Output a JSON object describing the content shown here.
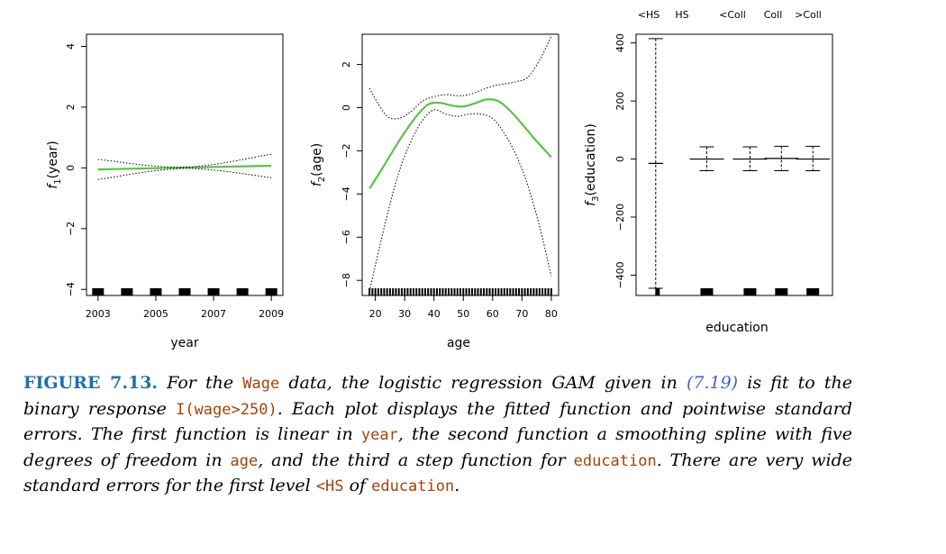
{
  "chart_data": [
    {
      "type": "line",
      "xlabel": "year",
      "ylabel_main": "f",
      "ylabel_sub": "1",
      "ylabel_rest": "(year)",
      "xlim": [
        2002.6,
        2009.4
      ],
      "ylim": [
        -4.2,
        4.4
      ],
      "xticks": [
        2003,
        2005,
        2007,
        2009
      ],
      "yticks": [
        -4,
        -2,
        0,
        2,
        4
      ],
      "series": [
        {
          "x": [
            2003,
            2009
          ],
          "y": [
            -0.05,
            0.07
          ],
          "style": "fit",
          "color": "#5cc24a"
        },
        {
          "x": [
            2003,
            2006,
            2009
          ],
          "y": [
            0.28,
            0.02,
            0.45
          ],
          "style": "se-upper"
        },
        {
          "x": [
            2003,
            2006,
            2009
          ],
          "y": [
            -0.38,
            -0.02,
            -0.32
          ],
          "style": "se-lower"
        }
      ],
      "rug": [
        2003,
        2004,
        2005,
        2006,
        2007,
        2008,
        2009
      ]
    },
    {
      "type": "line",
      "xlabel": "age",
      "ylabel_main": "f",
      "ylabel_sub": "2",
      "ylabel_rest": "(age)",
      "xlim": [
        15.5,
        82.5
      ],
      "ylim": [
        -8.7,
        3.4
      ],
      "xticks": [
        20,
        30,
        40,
        50,
        60,
        70,
        80
      ],
      "yticks": [
        -8,
        -6,
        -4,
        -2,
        0,
        2
      ],
      "series": [
        {
          "x": [
            18,
            22,
            26,
            30,
            34,
            38,
            42,
            46,
            50,
            54,
            58,
            62,
            66,
            70,
            74,
            78,
            80
          ],
          "y": [
            -3.75,
            -2.9,
            -2.0,
            -1.15,
            -0.4,
            0.15,
            0.22,
            0.1,
            0.05,
            0.2,
            0.38,
            0.3,
            -0.15,
            -0.75,
            -1.4,
            -2.0,
            -2.3
          ],
          "style": "fit",
          "color": "#5cc24a"
        },
        {
          "x": [
            18,
            20,
            24,
            28,
            32,
            36,
            40,
            44,
            48,
            52,
            56,
            60,
            64,
            68,
            72,
            76,
            80
          ],
          "y": [
            0.9,
            0.4,
            -0.4,
            -0.5,
            -0.2,
            0.3,
            0.5,
            0.6,
            0.55,
            0.6,
            0.8,
            1.0,
            1.1,
            1.2,
            1.4,
            2.2,
            3.3
          ],
          "style": "se-upper"
        },
        {
          "x": [
            18,
            20,
            24,
            28,
            32,
            36,
            40,
            44,
            48,
            52,
            56,
            60,
            64,
            68,
            72,
            76,
            80
          ],
          "y": [
            -8.5,
            -7.3,
            -5.0,
            -3.0,
            -1.6,
            -0.6,
            -0.1,
            -0.3,
            -0.4,
            -0.3,
            -0.3,
            -0.5,
            -1.2,
            -2.2,
            -3.6,
            -5.5,
            -7.8
          ],
          "style": "se-lower"
        }
      ],
      "rug_range": [
        18,
        80
      ]
    },
    {
      "type": "step",
      "xlabel": "education",
      "ylabel_main": "f",
      "ylabel_sub": "3",
      "ylabel_rest": "(education)",
      "categories": [
        "<HS",
        "HS",
        "<Coll",
        "Coll",
        ">Coll"
      ],
      "ylim": [
        -470,
        430
      ],
      "yticks": [
        -400,
        -200,
        0,
        200,
        400
      ],
      "values": [
        -15,
        0,
        0,
        2,
        0
      ],
      "upper": [
        415,
        42,
        42,
        44,
        44
      ],
      "lower": [
        -445,
        -40,
        -40,
        -40,
        -40
      ]
    }
  ],
  "caption": {
    "figure_number": "FIGURE 7.13.",
    "p1": "For the",
    "c1": "Wage",
    "p2": "data, the logistic regression GAM given in",
    "eqref": "(7.19)",
    "p3": "is fit to the binary response",
    "c2": "I(wage>250)",
    "p4": ". Each plot displays the fitted function and pointwise standard errors. The first function is linear in",
    "c3": "year",
    "p5": ", the second function a smoothing spline with five degrees of freedom in",
    "c4": "age",
    "p6": ", and the third a step function for",
    "c5": "education",
    "p7": ". There are very wide standard errors for the first level",
    "c6": "<HS",
    "p8": "of",
    "c7": "education",
    "p9": "."
  }
}
